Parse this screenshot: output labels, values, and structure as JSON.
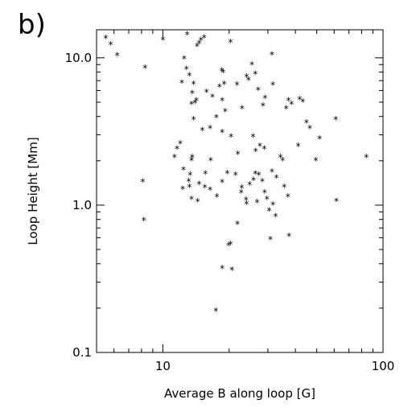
{
  "panel_label": "b)",
  "chart_data": {
    "type": "scatter",
    "title": "",
    "xlabel": "Average B along loop [G]",
    "ylabel": "Loop Height [Mm]",
    "xscale": "log",
    "yscale": "log",
    "xlim": [
      5,
      100
    ],
    "ylim": [
      0.1,
      15.5
    ],
    "x_ticks": [
      {
        "value": 10,
        "label": "10"
      },
      {
        "value": 100,
        "label": "100"
      }
    ],
    "y_ticks": [
      {
        "value": 0.1,
        "label": "0.1"
      },
      {
        "value": 1.0,
        "label": "1.0"
      },
      {
        "value": 10.0,
        "label": "10.0"
      }
    ],
    "grid": false,
    "legend": "none",
    "marker": "*",
    "points": [
      [
        5.5,
        13.5
      ],
      [
        5.8,
        12.2
      ],
      [
        6.2,
        10.3
      ],
      [
        10.0,
        13.2
      ],
      [
        12.9,
        14.3
      ],
      [
        14.3,
        11.9
      ],
      [
        14.6,
        12.4
      ],
      [
        14.9,
        13.1
      ],
      [
        15.4,
        13.6
      ],
      [
        20.3,
        12.7
      ],
      [
        31.3,
        10.4
      ],
      [
        8.3,
        8.5
      ],
      [
        12.5,
        9.8
      ],
      [
        12.8,
        8.3
      ],
      [
        13.2,
        7.5
      ],
      [
        12.2,
        6.7
      ],
      [
        13.8,
        6.6
      ],
      [
        18.5,
        8.1
      ],
      [
        18.8,
        7.9
      ],
      [
        25.4,
        8.9
      ],
      [
        24.0,
        7.4
      ],
      [
        26.3,
        7.7
      ],
      [
        13.6,
        5.7
      ],
      [
        14.0,
        4.9
      ],
      [
        13.5,
        4.8
      ],
      [
        14.2,
        5.1
      ],
      [
        15.8,
        5.8
      ],
      [
        16.8,
        5.4
      ],
      [
        18.1,
        6.3
      ],
      [
        19.0,
        6.6
      ],
      [
        21.7,
        6.5
      ],
      [
        24.5,
        7.0
      ],
      [
        27.1,
        6.0
      ],
      [
        29.1,
        5.3
      ],
      [
        31.6,
        6.5
      ],
      [
        28.5,
        4.7
      ],
      [
        22.9,
        4.5
      ],
      [
        18.6,
        5.1
      ],
      [
        19.2,
        4.3
      ],
      [
        13.8,
        3.8
      ],
      [
        15.1,
        3.2
      ],
      [
        16.4,
        3.3
      ],
      [
        18.6,
        3.1
      ],
      [
        17.5,
        3.9
      ],
      [
        20.4,
        2.9
      ],
      [
        12.0,
        2.6
      ],
      [
        11.6,
        2.4
      ],
      [
        11.3,
        2.1
      ],
      [
        13.6,
        2.1
      ],
      [
        13.5,
        2.0
      ],
      [
        16.5,
        2.0
      ],
      [
        21.9,
        2.2
      ],
      [
        25.7,
        2.9
      ],
      [
        26.4,
        2.3
      ],
      [
        27.6,
        2.5
      ],
      [
        28.9,
        2.4
      ],
      [
        34.2,
        2.1
      ],
      [
        36.3,
        4.5
      ],
      [
        37.2,
        5.1
      ],
      [
        38.4,
        4.8
      ],
      [
        41.8,
        5.2
      ],
      [
        43.2,
        5.0
      ],
      [
        44.9,
        3.6
      ],
      [
        46.5,
        3.3
      ],
      [
        51.5,
        2.8
      ],
      [
        49.5,
        2.0
      ],
      [
        41.2,
        2.5
      ],
      [
        35.0,
        2.0
      ],
      [
        61.0,
        3.8
      ],
      [
        84.0,
        2.1
      ],
      [
        8.1,
        1.43
      ],
      [
        12.4,
        1.73
      ],
      [
        13.3,
        1.59
      ],
      [
        13.1,
        1.44
      ],
      [
        13.2,
        1.32
      ],
      [
        12.3,
        1.28
      ],
      [
        13.5,
        1.09
      ],
      [
        14.6,
        1.38
      ],
      [
        15.6,
        1.62
      ],
      [
        15.5,
        1.31
      ],
      [
        16.4,
        1.26
      ],
      [
        17.6,
        1.13
      ],
      [
        18.6,
        1.42
      ],
      [
        19.6,
        1.63
      ],
      [
        21.4,
        1.59
      ],
      [
        22.7,
        1.21
      ],
      [
        23.9,
        1.08
      ],
      [
        24.8,
        1.37
      ],
      [
        25.8,
        1.47
      ],
      [
        26.3,
        1.62
      ],
      [
        27.3,
        1.59
      ],
      [
        28.3,
        1.44
      ],
      [
        29.0,
        1.21
      ],
      [
        29.7,
        1.09
      ],
      [
        31.3,
        1.67
      ],
      [
        32.8,
        1.52
      ],
      [
        35.6,
        1.32
      ],
      [
        37.0,
        1.13
      ],
      [
        31.6,
        1.0
      ],
      [
        30.4,
        0.91
      ],
      [
        32.5,
        0.83
      ],
      [
        14.4,
        1.05
      ],
      [
        21.8,
        0.74
      ],
      [
        61.4,
        1.06
      ],
      [
        8.2,
        0.78
      ],
      [
        20.3,
        0.54
      ],
      [
        20.6,
        0.36
      ],
      [
        19.9,
        0.53
      ],
      [
        18.6,
        0.37
      ],
      [
        30.8,
        0.58
      ],
      [
        37.4,
        0.61
      ],
      [
        17.4,
        0.19
      ],
      [
        24.0,
        1.01
      ],
      [
        26.8,
        1.04
      ],
      [
        22.8,
        1.3
      ]
    ]
  }
}
